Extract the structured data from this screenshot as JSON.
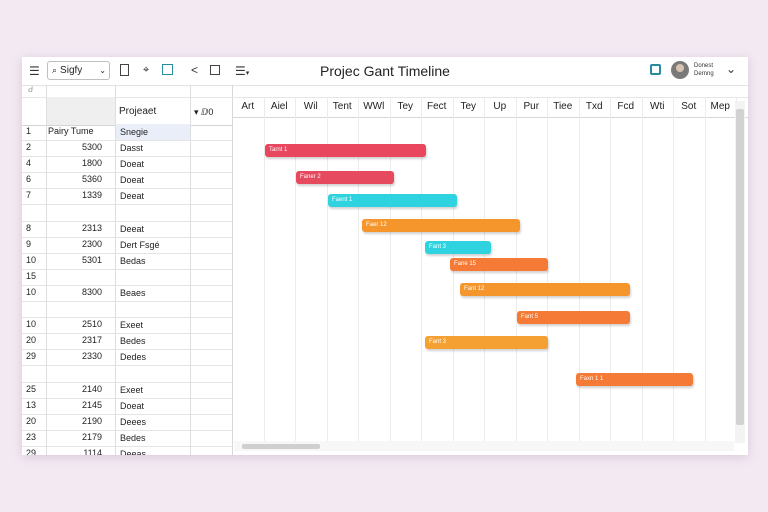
{
  "toolbar": {
    "menu_icon": "☰",
    "search_label": "Sigfy",
    "title": "Projeс Gant Timeline",
    "user_line1": "Donest",
    "user_line2": "Dernng"
  },
  "grid": {
    "top_label": "ⅆ",
    "columns": [
      "Projeaet",
      "▾ ⅅ0"
    ],
    "rows": [
      {
        "n": "1",
        "v": "Pairy Tume",
        "name": "Snegie"
      },
      {
        "n": "2",
        "v": "5300",
        "name": "Dasst"
      },
      {
        "n": "4",
        "v": "1800",
        "name": "Doeat"
      },
      {
        "n": "6",
        "v": "5360",
        "name": "Doeat"
      },
      {
        "n": "7",
        "v": "1339",
        "name": "Deeat"
      },
      {
        "n": "",
        "v": "",
        "name": ""
      },
      {
        "n": "8",
        "v": "2313",
        "name": "Deeat"
      },
      {
        "n": "9",
        "v": "2300",
        "name": "Dert Fsgé"
      },
      {
        "n": "10",
        "v": "5301",
        "name": "Bedas"
      },
      {
        "n": "15",
        "v": "",
        "name": ""
      },
      {
        "n": "10",
        "v": "8300",
        "name": "Beaes"
      },
      {
        "n": "",
        "v": "",
        "name": ""
      },
      {
        "n": "10",
        "v": "2510",
        "name": "Exeet"
      },
      {
        "n": "20",
        "v": "2317",
        "name": "Bedes"
      },
      {
        "n": "29",
        "v": "2330",
        "name": "Dedes"
      },
      {
        "n": "",
        "v": "",
        "name": ""
      },
      {
        "n": "25",
        "v": "2140",
        "name": "Exeet"
      },
      {
        "n": "13",
        "v": "2145",
        "name": "Doeat"
      },
      {
        "n": "20",
        "v": "2190",
        "name": "Deees"
      },
      {
        "n": "23",
        "v": "2179",
        "name": "Bedes"
      },
      {
        "n": "29",
        "v": "1114",
        "name": "Deeas"
      }
    ]
  },
  "timeline": {
    "months": [
      "Art",
      "Aiel",
      "Wil",
      "Tent",
      "WWl",
      "Tey",
      "Fect",
      "Tey",
      "Up",
      "Pur",
      "Tiee",
      "Txd",
      "Fcd",
      "Wti",
      "Sot",
      "Mep"
    ],
    "bars": [
      {
        "label": "Tarnt 1",
        "color": "#e8475e",
        "start": 1,
        "end": 6.1
      },
      {
        "label": "Faner 2",
        "color": "#e64a5f",
        "start": 2,
        "end": 5.1
      },
      {
        "label": "Faent 1",
        "color": "#2fd3e0",
        "start": 3,
        "end": 7.1
      },
      {
        "label": "Faer 12",
        "color": "#f5962d",
        "start": 4.1,
        "end": 9.1
      },
      {
        "label": "Fant 3",
        "color": "#2fd3e0",
        "start": 6.1,
        "end": 8.2
      },
      {
        "label": "Fane 15",
        "color": "#f47a35",
        "start": 6.9,
        "end": 10
      },
      {
        "label": "Fant 12",
        "color": "#f5962d",
        "start": 7.2,
        "end": 12.6
      },
      {
        "label": "Fant 5",
        "color": "#f47a35",
        "start": 9.0,
        "end": 12.6
      },
      {
        "label": "Fant 3",
        "color": "#f5a032",
        "start": 6.1,
        "end": 10
      },
      {
        "label": "Faxn 1 1",
        "color": "#f47a35",
        "start": 10.9,
        "end": 14.6
      }
    ]
  }
}
